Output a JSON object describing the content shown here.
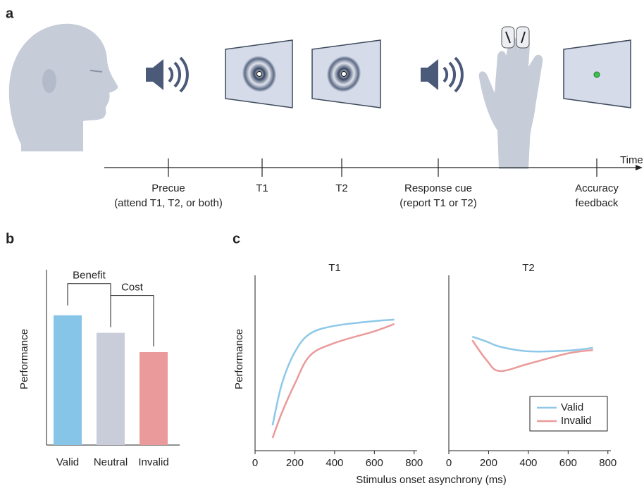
{
  "panel_labels": [
    "a",
    "b",
    "c"
  ],
  "panel_a": {
    "timeline": {
      "axis_label": "Time",
      "events": [
        [
          "Precue",
          "(attend T1, T2, or both)"
        ],
        [
          "T1"
        ],
        [
          "T2"
        ],
        [
          "Response cue",
          "(report T1 or T2)"
        ],
        [
          "Accuracy",
          "feedback"
        ]
      ]
    }
  },
  "chart_data": [
    {
      "type": "bar",
      "ylabel": "Performance",
      "categories": [
        "Valid",
        "Neutral",
        "Invalid"
      ],
      "values": [
        0.74,
        0.64,
        0.53
      ],
      "colors": [
        "#86c4e8",
        "#c9cdda",
        "#ea9a9a"
      ],
      "ylim": [
        0,
        1
      ],
      "annotations": [
        "Benefit",
        "Cost"
      ]
    },
    {
      "type": "line",
      "title": "T1",
      "ylabel": "Performance",
      "xlabel": "Stimulus onset asynchrony (ms)",
      "x": [
        88,
        135,
        200,
        276,
        400,
        600,
        700
      ],
      "series": [
        {
          "color": "#8ec8e8",
          "values": [
            0.14,
            0.37,
            0.545,
            0.646,
            0.69,
            0.716,
            0.724
          ]
        },
        {
          "color": "#eb9a9a",
          "values": [
            0.07,
            0.21,
            0.37,
            0.525,
            0.595,
            0.66,
            0.7
          ]
        }
      ],
      "xlim": [
        0,
        815
      ],
      "xticks": [
        0,
        200,
        400,
        600,
        800
      ],
      "ylim": [
        0,
        1
      ]
    },
    {
      "type": "line",
      "title": "T2",
      "x": [
        118,
        190,
        255,
        400,
        596,
        725
      ],
      "series": [
        {
          "name": "Valid",
          "color": "#8ec8e8",
          "values": [
            0.63,
            0.603,
            0.575,
            0.549,
            0.553,
            0.568
          ]
        },
        {
          "name": "Invalid",
          "color": "#eb9a9a",
          "values": [
            0.61,
            0.5,
            0.44,
            0.48,
            0.537,
            0.556
          ]
        }
      ],
      "xlim": [
        0,
        815
      ],
      "xticks": [
        0,
        200,
        400,
        600,
        800
      ],
      "ylim": [
        0,
        1
      ]
    }
  ]
}
